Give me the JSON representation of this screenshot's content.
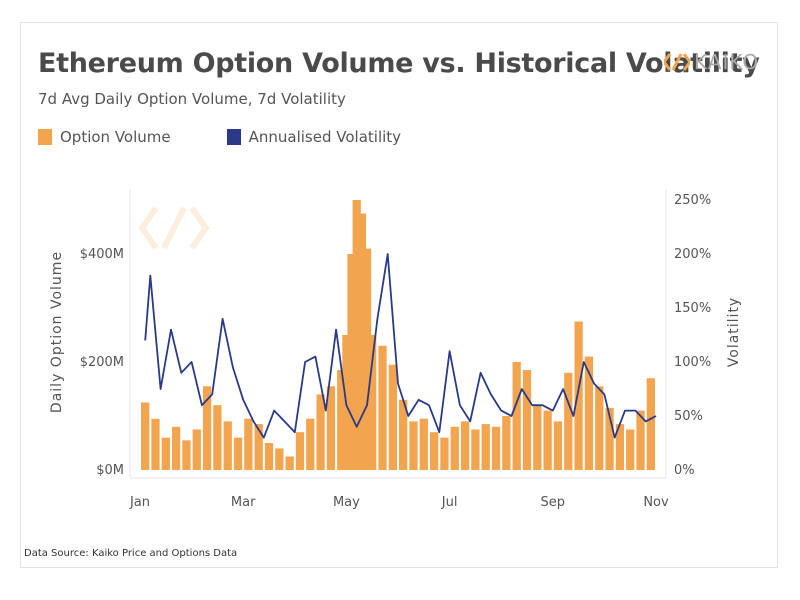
{
  "header": {
    "title": "Ethereum Option Volume vs. Historical Volatility",
    "subtitle": "7d Avg Daily Option Volume, 7d Volatility",
    "brand": "KAIKO"
  },
  "footer": {
    "source": "Data Source: Kaiko Price and Options Data"
  },
  "colors": {
    "volume": "#f2a44e",
    "volatility": "#2b3a86",
    "logo": "#f2a44e"
  },
  "chart_data": {
    "type": "bar",
    "title": "Ethereum Option Volume vs. Historical Volatility",
    "subtitle": "7d Avg Daily Option Volume, 7d Volatility",
    "x_unit": "month",
    "x_range": [
      0,
      10
    ],
    "x_ticks": [
      {
        "label": "Jan",
        "x": 0
      },
      {
        "label": "Mar",
        "x": 2
      },
      {
        "label": "May",
        "x": 4
      },
      {
        "label": "Jul",
        "x": 6
      },
      {
        "label": "Sep",
        "x": 8
      },
      {
        "label": "Nov",
        "x": 10
      }
    ],
    "y_left": {
      "label": "Daily Option Volume",
      "range": [
        0,
        500
      ],
      "unit": "M",
      "ticks": [
        {
          "label": "$0M",
          "value": 0
        },
        {
          "label": "$200M",
          "value": 200
        },
        {
          "label": "$400M",
          "value": 400
        }
      ]
    },
    "y_right": {
      "label": "Volatility",
      "range": [
        0,
        250
      ],
      "ticks": [
        {
          "label": "0%",
          "value": 0
        },
        {
          "label": "50%",
          "value": 50
        },
        {
          "label": "100%",
          "value": 100
        },
        {
          "label": "150%",
          "value": 150
        },
        {
          "label": "200%",
          "value": 200
        },
        {
          "label": "250%",
          "value": 250
        }
      ]
    },
    "grid": false,
    "legend_position": "top-left",
    "series": [
      {
        "name": "Option Volume",
        "type": "bar",
        "axis": "left",
        "x": [
          0.1,
          0.3,
          0.5,
          0.7,
          0.9,
          1.1,
          1.3,
          1.5,
          1.7,
          1.9,
          2.1,
          2.3,
          2.5,
          2.7,
          2.9,
          3.1,
          3.3,
          3.5,
          3.7,
          3.9,
          4.0,
          4.1,
          4.2,
          4.3,
          4.4,
          4.5,
          4.7,
          4.9,
          5.1,
          5.3,
          5.5,
          5.7,
          5.9,
          6.1,
          6.3,
          6.5,
          6.7,
          6.9,
          7.1,
          7.3,
          7.5,
          7.7,
          7.9,
          8.1,
          8.3,
          8.5,
          8.7,
          8.9,
          9.1,
          9.3,
          9.5,
          9.7,
          9.9
        ],
        "values": [
          125,
          95,
          60,
          80,
          55,
          75,
          155,
          120,
          90,
          60,
          95,
          85,
          50,
          40,
          25,
          70,
          95,
          140,
          155,
          185,
          250,
          400,
          500,
          475,
          410,
          250,
          230,
          195,
          130,
          90,
          95,
          70,
          60,
          80,
          90,
          75,
          85,
          80,
          100,
          200,
          185,
          120,
          110,
          90,
          180,
          275,
          210,
          155,
          115,
          85,
          75,
          110,
          170
        ]
      },
      {
        "name": "Annualised Volatility",
        "type": "line",
        "axis": "right",
        "x": [
          0.1,
          0.2,
          0.4,
          0.6,
          0.8,
          1.0,
          1.2,
          1.4,
          1.6,
          1.8,
          2.0,
          2.2,
          2.4,
          2.6,
          2.8,
          3.0,
          3.2,
          3.4,
          3.6,
          3.8,
          4.0,
          4.2,
          4.4,
          4.6,
          4.8,
          5.0,
          5.2,
          5.4,
          5.6,
          5.8,
          6.0,
          6.2,
          6.4,
          6.6,
          6.8,
          7.0,
          7.2,
          7.4,
          7.6,
          7.8,
          8.0,
          8.2,
          8.4,
          8.6,
          8.8,
          9.0,
          9.2,
          9.4,
          9.6,
          9.8,
          10.0
        ],
        "values": [
          120,
          180,
          75,
          130,
          90,
          100,
          60,
          70,
          140,
          95,
          65,
          45,
          30,
          55,
          45,
          35,
          100,
          105,
          55,
          130,
          60,
          40,
          60,
          140,
          200,
          80,
          50,
          65,
          60,
          35,
          110,
          60,
          45,
          90,
          70,
          55,
          50,
          75,
          60,
          60,
          55,
          75,
          50,
          100,
          80,
          70,
          30,
          55,
          55,
          45,
          50
        ]
      }
    ]
  }
}
